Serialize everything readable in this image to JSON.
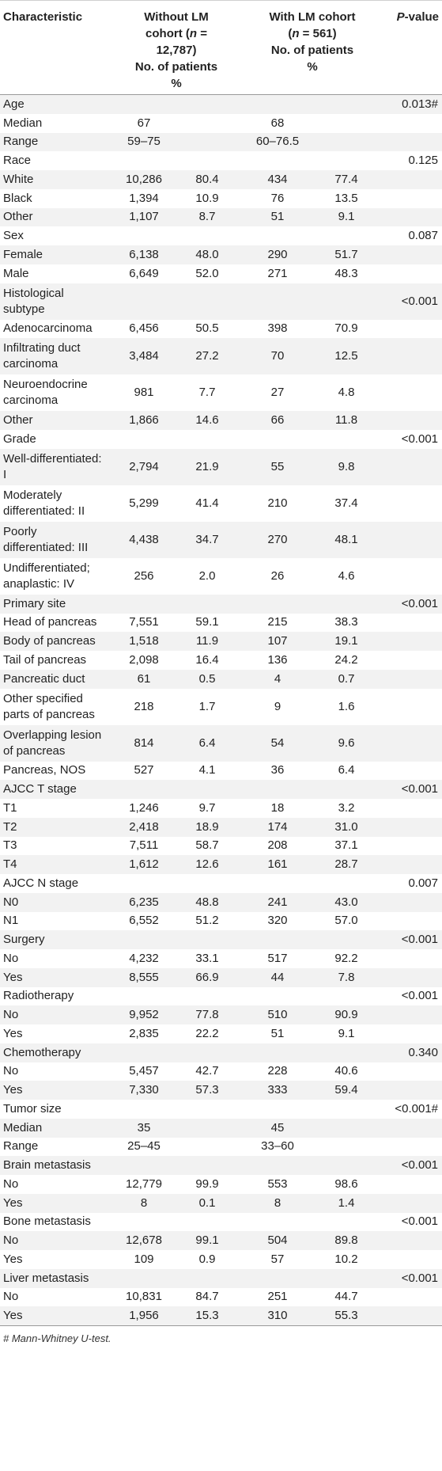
{
  "header": {
    "characteristic": "Characteristic",
    "without_l1": "Without LM",
    "without_l2a": "cohort (",
    "without_l2b": "n",
    "without_l2c": " =",
    "without_l3": "12,787)",
    "without_l4": "No. of patients",
    "without_l5": "%",
    "with_l1": "With LM cohort",
    "with_l2a": "(",
    "with_l2b": "n",
    "with_l2c": " = 561)",
    "with_l3": "No. of patients",
    "with_l4": "%",
    "pvalue_a": "P",
    "pvalue_b": "-value"
  },
  "rows": [
    {
      "label": [
        "Age"
      ],
      "pv": "0.013#"
    },
    {
      "label": [
        "Median"
      ],
      "n1": "67",
      "n2": "68"
    },
    {
      "label": [
        "Range"
      ],
      "n1": "59–75",
      "n2": "60–76.5"
    },
    {
      "label": [
        "Race"
      ],
      "pv": "0.125"
    },
    {
      "label": [
        "White"
      ],
      "n1": "10,286",
      "p1": "80.4",
      "n2": "434",
      "p2": "77.4"
    },
    {
      "label": [
        "Black"
      ],
      "n1": "1,394",
      "p1": "10.9",
      "n2": "76",
      "p2": "13.5"
    },
    {
      "label": [
        "Other"
      ],
      "n1": "1,107",
      "p1": "8.7",
      "n2": "51",
      "p2": "9.1"
    },
    {
      "label": [
        "Sex"
      ],
      "pv": "0.087"
    },
    {
      "label": [
        "Female"
      ],
      "n1": "6,138",
      "p1": "48.0",
      "n2": "290",
      "p2": "51.7"
    },
    {
      "label": [
        "Male"
      ],
      "n1": "6,649",
      "p1": "52.0",
      "n2": "271",
      "p2": "48.3"
    },
    {
      "label": [
        "Histological",
        "subtype"
      ],
      "pv": "<0.001"
    },
    {
      "label": [
        "Adenocarcinoma"
      ],
      "n1": "6,456",
      "p1": "50.5",
      "n2": "398",
      "p2": "70.9"
    },
    {
      "label": [
        "Infiltrating duct",
        "carcinoma"
      ],
      "n1": "3,484",
      "p1": "27.2",
      "n2": "70",
      "p2": "12.5"
    },
    {
      "label": [
        "Neuroendocrine",
        "carcinoma"
      ],
      "n1": "981",
      "p1": "7.7",
      "n2": "27",
      "p2": "4.8"
    },
    {
      "label": [
        "Other"
      ],
      "n1": "1,866",
      "p1": "14.6",
      "n2": "66",
      "p2": "11.8"
    },
    {
      "label": [
        "Grade"
      ],
      "pv": "<0.001"
    },
    {
      "label": [
        "Well-differentiated:",
        "I"
      ],
      "n1": "2,794",
      "p1": "21.9",
      "n2": "55",
      "p2": "9.8"
    },
    {
      "label": [
        "Moderately",
        "differentiated: II"
      ],
      "n1": "5,299",
      "p1": "41.4",
      "n2": "210",
      "p2": "37.4"
    },
    {
      "label": [
        "Poorly",
        "differentiated: III"
      ],
      "n1": "4,438",
      "p1": "34.7",
      "n2": "270",
      "p2": "48.1"
    },
    {
      "label": [
        "Undifferentiated;",
        "anaplastic: IV"
      ],
      "n1": "256",
      "p1": "2.0",
      "n2": "26",
      "p2": "4.6"
    },
    {
      "label": [
        "Primary site"
      ],
      "pv": "<0.001"
    },
    {
      "label": [
        "Head of pancreas"
      ],
      "n1": "7,551",
      "p1": "59.1",
      "n2": "215",
      "p2": "38.3"
    },
    {
      "label": [
        "Body of pancreas"
      ],
      "n1": "1,518",
      "p1": "11.9",
      "n2": "107",
      "p2": "19.1"
    },
    {
      "label": [
        "Tail of pancreas"
      ],
      "n1": "2,098",
      "p1": "16.4",
      "n2": "136",
      "p2": "24.2"
    },
    {
      "label": [
        "Pancreatic duct"
      ],
      "n1": "61",
      "p1": "0.5",
      "n2": "4",
      "p2": "0.7"
    },
    {
      "label": [
        "Other specified",
        "parts of pancreas"
      ],
      "n1": "218",
      "p1": "1.7",
      "n2": "9",
      "p2": "1.6"
    },
    {
      "label": [
        "Overlapping lesion",
        "of pancreas"
      ],
      "n1": "814",
      "p1": "6.4",
      "n2": "54",
      "p2": "9.6"
    },
    {
      "label": [
        "Pancreas, NOS"
      ],
      "n1": "527",
      "p1": "4.1",
      "n2": "36",
      "p2": "6.4"
    },
    {
      "label": [
        "AJCC T stage"
      ],
      "pv": "<0.001"
    },
    {
      "label": [
        "T1"
      ],
      "n1": "1,246",
      "p1": "9.7",
      "n2": "18",
      "p2": "3.2"
    },
    {
      "label": [
        "T2"
      ],
      "n1": "2,418",
      "p1": "18.9",
      "n2": "174",
      "p2": "31.0"
    },
    {
      "label": [
        "T3"
      ],
      "n1": "7,511",
      "p1": "58.7",
      "n2": "208",
      "p2": "37.1"
    },
    {
      "label": [
        "T4"
      ],
      "n1": "1,612",
      "p1": "12.6",
      "n2": "161",
      "p2": "28.7"
    },
    {
      "label": [
        "AJCC N stage"
      ],
      "pv": "0.007"
    },
    {
      "label": [
        "N0"
      ],
      "n1": "6,235",
      "p1": "48.8",
      "n2": "241",
      "p2": "43.0"
    },
    {
      "label": [
        "N1"
      ],
      "n1": "6,552",
      "p1": "51.2",
      "n2": "320",
      "p2": "57.0"
    },
    {
      "label": [
        "Surgery"
      ],
      "pv": "<0.001"
    },
    {
      "label": [
        "No"
      ],
      "n1": "4,232",
      "p1": "33.1",
      "n2": "517",
      "p2": "92.2"
    },
    {
      "label": [
        "Yes"
      ],
      "n1": "8,555",
      "p1": "66.9",
      "n2": "44",
      "p2": "7.8"
    },
    {
      "label": [
        "Radiotherapy"
      ],
      "pv": "<0.001"
    },
    {
      "label": [
        "No"
      ],
      "n1": "9,952",
      "p1": "77.8",
      "n2": "510",
      "p2": "90.9"
    },
    {
      "label": [
        "Yes"
      ],
      "n1": "2,835",
      "p1": "22.2",
      "n2": "51",
      "p2": "9.1"
    },
    {
      "label": [
        "Chemotherapy"
      ],
      "pv": "0.340"
    },
    {
      "label": [
        "No"
      ],
      "n1": "5,457",
      "p1": "42.7",
      "n2": "228",
      "p2": "40.6"
    },
    {
      "label": [
        "Yes"
      ],
      "n1": "7,330",
      "p1": "57.3",
      "n2": "333",
      "p2": "59.4"
    },
    {
      "label": [
        "Tumor size"
      ],
      "pv": "<0.001#"
    },
    {
      "label": [
        "Median"
      ],
      "n1": "35",
      "n2": "45"
    },
    {
      "label": [
        "Range"
      ],
      "n1": "25–45",
      "n2": "33–60"
    },
    {
      "label": [
        "Brain metastasis"
      ],
      "pv": "<0.001"
    },
    {
      "label": [
        "No"
      ],
      "n1": "12,779",
      "p1": "99.9",
      "n2": "553",
      "p2": "98.6"
    },
    {
      "label": [
        "Yes"
      ],
      "n1": "8",
      "p1": "0.1",
      "n2": "8",
      "p2": "1.4"
    },
    {
      "label": [
        "Bone metastasis"
      ],
      "pv": "<0.001"
    },
    {
      "label": [
        "No"
      ],
      "n1": "12,678",
      "p1": "99.1",
      "n2": "504",
      "p2": "89.8"
    },
    {
      "label": [
        "Yes"
      ],
      "n1": "109",
      "p1": "0.9",
      "n2": "57",
      "p2": "10.2"
    },
    {
      "label": [
        "Liver metastasis"
      ],
      "pv": "<0.001"
    },
    {
      "label": [
        "No"
      ],
      "n1": "10,831",
      "p1": "84.7",
      "n2": "251",
      "p2": "44.7"
    },
    {
      "label": [
        "Yes"
      ],
      "n1": "1,956",
      "p1": "15.3",
      "n2": "310",
      "p2": "55.3"
    }
  ],
  "footnote": "# Mann-Whitney U-test."
}
